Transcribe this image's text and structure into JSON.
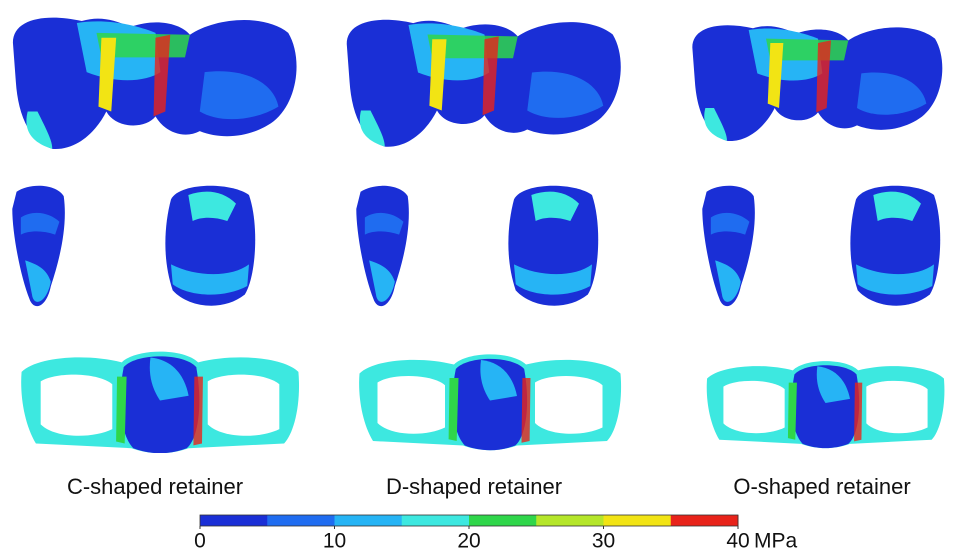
{
  "labels": [
    "C-shaped retainer",
    "D-shaped retainer",
    "O-shaped retainer"
  ],
  "colorbar": {
    "lim": [
      0,
      40
    ],
    "ticks": [
      0,
      10,
      20,
      30,
      40
    ],
    "unit": "MPa",
    "colors": [
      "#1a2fd6",
      "#1f6cf0",
      "#26b4f5",
      "#3de8e0",
      "#2fd64a",
      "#b5e62a",
      "#f2e414",
      "#e8231a"
    ]
  }
}
